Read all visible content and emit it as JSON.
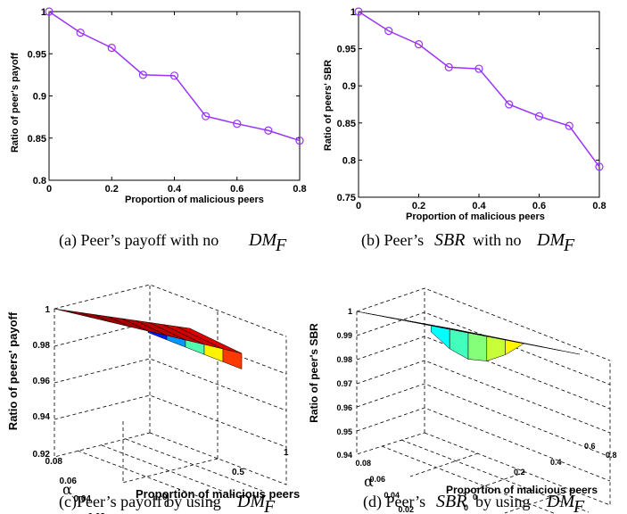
{
  "chart_data": [
    {
      "type": "line",
      "x": [
        0,
        0.1,
        0.2,
        0.3,
        0.4,
        0.5,
        0.6,
        0.7,
        0.8
      ],
      "series": [
        {
          "values": [
            1.0,
            0.975,
            0.957,
            0.925,
            0.924,
            0.876,
            0.867,
            0.859,
            0.847
          ]
        }
      ],
      "xlabel": "Proportion of malicious peers",
      "ylabel": "Ratio of peer's payoff",
      "xlim": [
        0,
        0.8
      ],
      "ylim": [
        0.8,
        1
      ],
      "xticks": [
        "0",
        "0.2",
        "0.4",
        "0.6",
        "0.8"
      ],
      "yticks": [
        "0.8",
        "0.85",
        "0.9",
        "0.95",
        "1"
      ],
      "line_color": "#9933ff",
      "marker": "circle"
    },
    {
      "type": "line",
      "x": [
        0,
        0.1,
        0.2,
        0.3,
        0.4,
        0.5,
        0.6,
        0.7,
        0.8
      ],
      "series": [
        {
          "values": [
            1.0,
            0.974,
            0.956,
            0.925,
            0.923,
            0.875,
            0.859,
            0.846,
            0.791
          ]
        }
      ],
      "xlabel": "Proportion of malicious peers",
      "ylabel": "Ratio of peers' SBR",
      "xlim": [
        0,
        0.8
      ],
      "ylim": [
        0.75,
        1
      ],
      "xticks": [
        "0",
        "0.2",
        "0.4",
        "0.6",
        "0.8"
      ],
      "yticks": [
        "0.75",
        "0.8",
        "0.85",
        "0.9",
        "0.95",
        "1"
      ],
      "line_color": "#9933ff",
      "marker": "circle"
    },
    {
      "type": "surface",
      "xlabel": "Proportion of malicious peers",
      "ylabel": "α",
      "zlabel": "Ratio of peers' payoff",
      "xticks": [
        "0",
        "0.5",
        "1"
      ],
      "yticks": [
        "0",
        "0.02",
        "0.04",
        "0.06",
        "0.08"
      ],
      "zticks": [
        "0.92",
        "0.94",
        "0.96",
        "0.98",
        "1"
      ],
      "zlim": [
        0.92,
        1
      ]
    },
    {
      "type": "surface",
      "xlabel": "Proportion of malicious peers",
      "ylabel": "α",
      "zlabel": "Ratio of peer's SBR",
      "xticks": [
        "0",
        "0.2",
        "0.4",
        "0.6",
        "0.8"
      ],
      "yticks": [
        "0",
        "0.02",
        "0.04",
        "0.06",
        "0.08"
      ],
      "zticks": [
        "0.94",
        "0.95",
        "0.96",
        "0.97",
        "0.98",
        "0.99",
        "1"
      ],
      "zlim": [
        0.94,
        1
      ]
    }
  ],
  "captions": {
    "a": {
      "pre": "(a) Peer’s payoff with no",
      "sym": "DM",
      "sub": "F"
    },
    "b": {
      "pre": "(b) Peer’s",
      "mid_i": "SBR",
      "post": "with no",
      "sym": "DM",
      "sub": "F"
    },
    "c": {
      "pre": "(c)Peer’s payoff by using",
      "sym": "DM",
      "sub": "F"
    },
    "d": {
      "pre": "(d) Peer’s",
      "mid_i": "SBR",
      "post": "by using",
      "sym": "DM",
      "sub": "F"
    }
  }
}
